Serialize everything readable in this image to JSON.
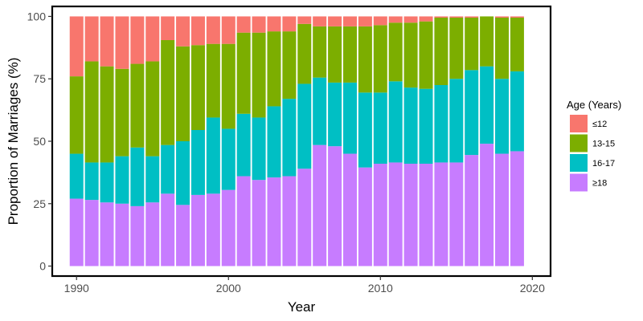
{
  "chart_data": {
    "type": "bar",
    "stacked": true,
    "xlabel": "Year",
    "ylabel": "Proportion of Marriages (%)",
    "xlim": [
      1988.4,
      2021.2
    ],
    "ylim": [
      -4,
      104
    ],
    "x_ticks": [
      1990,
      2000,
      2010,
      2020
    ],
    "y_ticks": [
      0,
      25,
      50,
      75,
      100
    ],
    "grid": false,
    "legend_position": "right",
    "legend_title": "Age (Years)",
    "x": [
      1990,
      1991,
      1992,
      1993,
      1994,
      1995,
      1996,
      1997,
      1998,
      1999,
      2000,
      2001,
      2002,
      2003,
      2004,
      2005,
      2006,
      2007,
      2008,
      2009,
      2010,
      2011,
      2012,
      2013,
      2014,
      2015,
      2016,
      2017,
      2018,
      2019
    ],
    "series": [
      {
        "name": "≥18",
        "color": "#C77CFF",
        "values": [
          27,
          26.5,
          25.5,
          25,
          24,
          25.5,
          29,
          24.5,
          28.5,
          29,
          30.5,
          36,
          34.5,
          35.5,
          36,
          39,
          48.5,
          48,
          45,
          39.5,
          41,
          41.5,
          41,
          41,
          41.5,
          41.5,
          44.5,
          49,
          45,
          46
        ]
      },
      {
        "name": "16-17",
        "color": "#00BFC4",
        "values": [
          18,
          15,
          16,
          19,
          23.5,
          18.5,
          19.5,
          25.5,
          26,
          30.5,
          24.5,
          25,
          25,
          28.5,
          31,
          34,
          27,
          25.5,
          28.5,
          30,
          28.5,
          32.5,
          30.5,
          30,
          31,
          33.5,
          34,
          31,
          30,
          32
        ]
      },
      {
        "name": "13-15",
        "color": "#7CAE00",
        "values": [
          31,
          40.5,
          38.5,
          35,
          33.5,
          38,
          42,
          38,
          34,
          29.5,
          34,
          32.5,
          34,
          30,
          27,
          24,
          20.5,
          22.5,
          22.5,
          26.5,
          27,
          23.5,
          26,
          27,
          27,
          24.5,
          21,
          20,
          24.5,
          21.5
        ]
      },
      {
        "name": "≤12",
        "color": "#F8766D",
        "values": [
          24,
          18,
          20,
          21,
          19,
          18,
          9.5,
          12,
          11.5,
          11,
          11,
          6.5,
          6.5,
          6,
          6,
          3,
          4,
          4,
          4,
          4,
          3.5,
          2.5,
          2.5,
          2,
          0.5,
          0.5,
          0.5,
          0,
          0.5,
          0.5
        ]
      }
    ],
    "legend_order": [
      "≤12",
      "13-15",
      "16-17",
      "≥18"
    ]
  }
}
